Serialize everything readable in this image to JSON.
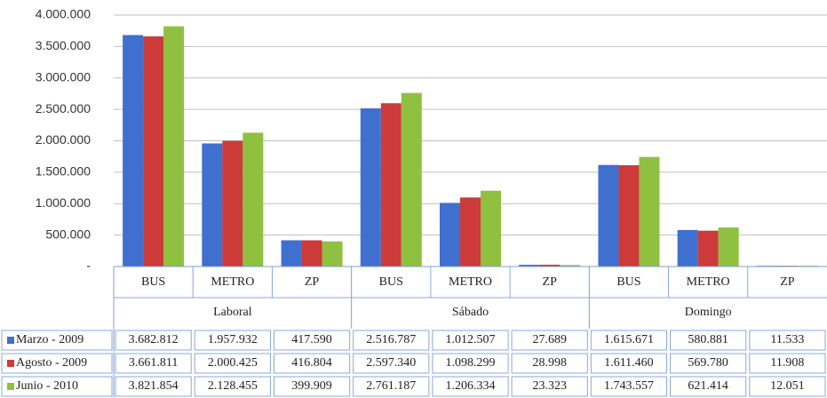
{
  "chart_data": {
    "type": "bar",
    "categories": [
      "BUS",
      "METRO",
      "ZP",
      "BUS",
      "METRO",
      "ZP",
      "BUS",
      "METRO",
      "ZP"
    ],
    "groups": [
      "Laboral",
      "Sábado",
      "Domingo"
    ],
    "series": [
      {
        "name": "Marzo - 2009",
        "color": "#3f6fcf",
        "values": [
          3682812,
          1957932,
          417590,
          2516787,
          1012507,
          27689,
          1615671,
          580881,
          11533
        ],
        "value_labels": [
          "3.682.812",
          "1.957.932",
          "417.590",
          "2.516.787",
          "1.012.507",
          "27.689",
          "1.615.671",
          "580.881",
          "11.533"
        ]
      },
      {
        "name": "Agosto - 2009",
        "color": "#cc3a3a",
        "values": [
          3661811,
          2000425,
          416804,
          2597340,
          1098299,
          28998,
          1611460,
          569780,
          11908
        ],
        "value_labels": [
          "3.661.811",
          "2.000.425",
          "416.804",
          "2.597.340",
          "1.098.299",
          "28.998",
          "1.611.460",
          "569.780",
          "11.908"
        ]
      },
      {
        "name": "Junio - 2010",
        "color": "#8fc040",
        "values": [
          3821854,
          2128455,
          399909,
          2761187,
          1206334,
          23323,
          1743557,
          621414,
          12051
        ],
        "value_labels": [
          "3.821.854",
          "2.128.455",
          "399.909",
          "2.761.187",
          "1.206.334",
          "23.323",
          "1.743.557",
          "621.414",
          "12.051"
        ]
      }
    ],
    "ylim": [
      0,
      4000000
    ],
    "yticks": [
      {
        "value": 0,
        "label": "-"
      },
      {
        "value": 500000,
        "label": "500.000"
      },
      {
        "value": 1000000,
        "label": "1.000.000"
      },
      {
        "value": 1500000,
        "label": "1.500.000"
      },
      {
        "value": 2000000,
        "label": "2.000.000"
      },
      {
        "value": 2500000,
        "label": "2.500.000"
      },
      {
        "value": 3000000,
        "label": "3.000.000"
      },
      {
        "value": 3500000,
        "label": "3.500.000"
      },
      {
        "value": 4000000,
        "label": "4.000.000"
      }
    ],
    "grid": true
  }
}
